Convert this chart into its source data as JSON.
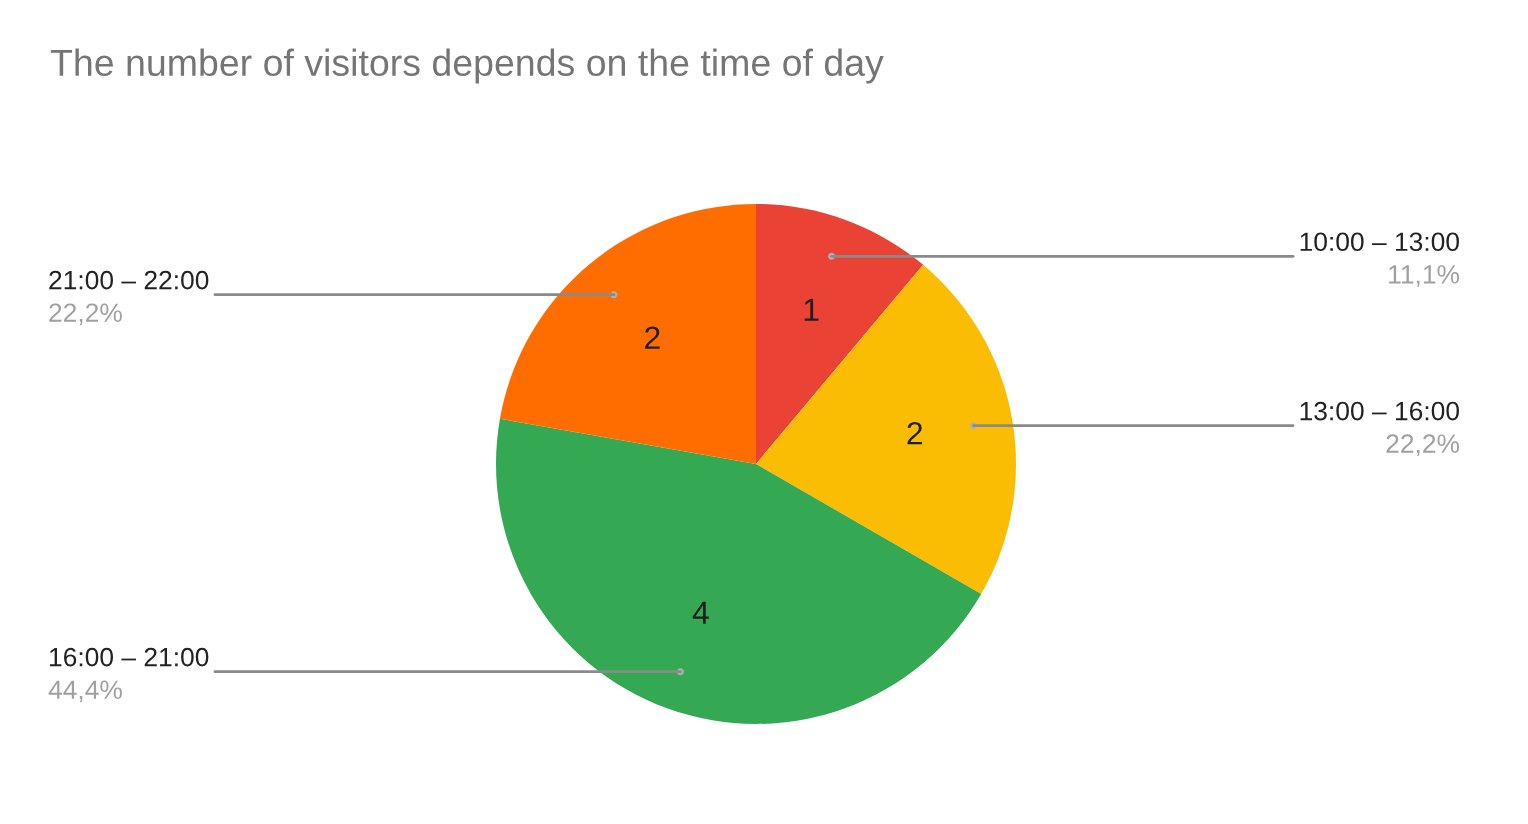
{
  "chart_data": {
    "type": "pie",
    "title": "The number of visitors depends on the time of day",
    "categories": [
      "10:00 – 13:00",
      "13:00 – 16:00",
      "16:00 – 21:00",
      "21:00 – 22:00"
    ],
    "values": [
      1,
      2,
      4,
      2
    ],
    "colors": [
      "#ea4335",
      "#fbbc04",
      "#34a853",
      "#ff6d01"
    ],
    "data_labels": true,
    "annotations": [
      "11,1%",
      "22,2%",
      "44,4%",
      "22,2%"
    ]
  }
}
